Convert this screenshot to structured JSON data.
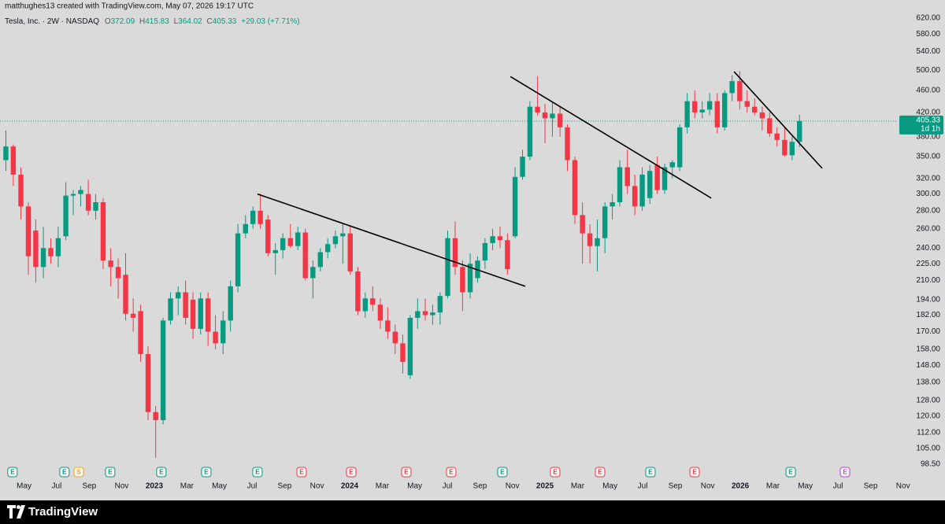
{
  "chart_data": {
    "type": "candlestick",
    "credit": "matthughes13 created with TradingView.com, May 07, 2026 19:17 UTC",
    "title": "Tesla, Inc. · 2W · NASDAQ",
    "ohlc_letters": [
      "O",
      "H",
      "L",
      "C"
    ],
    "change_label": "+29.03 (+7.71%)",
    "countdown": "1d 1h",
    "brand": "TradingView",
    "log_scale": true,
    "grid": false,
    "up_color": "#089981",
    "down_color": "#f23645",
    "xlim": [
      2022.21,
      2026.806
    ],
    "ylim": [
      92.8,
      668
    ],
    "yticks": [
      {
        "value": 98.5,
        "label": "98.50"
      },
      {
        "value": 105,
        "label": "105.00"
      },
      {
        "value": 112,
        "label": "112.00"
      },
      {
        "value": 120,
        "label": "120.00"
      },
      {
        "value": 128,
        "label": "128.00"
      },
      {
        "value": 138,
        "label": "138.00"
      },
      {
        "value": 148,
        "label": "148.00"
      },
      {
        "value": 158,
        "label": "158.00"
      },
      {
        "value": 170,
        "label": "170.00"
      },
      {
        "value": 182,
        "label": "182.00"
      },
      {
        "value": 194,
        "label": "194.00"
      },
      {
        "value": 210,
        "label": "210.00"
      },
      {
        "value": 225,
        "label": "225.00"
      },
      {
        "value": 240,
        "label": "240.00"
      },
      {
        "value": 260,
        "label": "260.00"
      },
      {
        "value": 280,
        "label": "280.00"
      },
      {
        "value": 300,
        "label": "300.00"
      },
      {
        "value": 320,
        "label": "320.00"
      },
      {
        "value": 350,
        "label": "350.00"
      },
      {
        "value": 380,
        "label": "380.00"
      },
      {
        "value": 420,
        "label": "420.00"
      },
      {
        "value": 460,
        "label": "460.00"
      },
      {
        "value": 500,
        "label": "500.00"
      },
      {
        "value": 540,
        "label": "540.00"
      },
      {
        "value": 580,
        "label": "580.00"
      },
      {
        "value": 620,
        "label": "620.00"
      }
    ],
    "xticks": [
      {
        "value": 2022.333,
        "label": "May"
      },
      {
        "value": 2022.5,
        "label": "Jul"
      },
      {
        "value": 2022.667,
        "label": "Sep"
      },
      {
        "value": 2022.833,
        "label": "Nov"
      },
      2023,
      {
        "value": 2023.167,
        "label": "Mar"
      },
      {
        "value": 2023.333,
        "label": "May"
      },
      {
        "value": 2023.5,
        "label": "Jul"
      },
      {
        "value": 2023.667,
        "label": "Sep"
      },
      {
        "value": 2023.833,
        "label": "Nov"
      },
      2024,
      {
        "value": 2024.167,
        "label": "Mar"
      },
      {
        "value": 2024.333,
        "label": "May"
      },
      {
        "value": 2024.5,
        "label": "Jul"
      },
      {
        "value": 2024.667,
        "label": "Sep"
      },
      {
        "value": 2024.833,
        "label": "Nov"
      },
      2025,
      {
        "value": 2025.167,
        "label": "Mar"
      },
      {
        "value": 2025.333,
        "label": "May"
      },
      {
        "value": 2025.5,
        "label": "Jul"
      },
      {
        "value": 2025.667,
        "label": "Sep"
      },
      {
        "value": 2025.833,
        "label": "Nov"
      },
      2026,
      {
        "value": 2026.167,
        "label": "Mar"
      },
      {
        "value": 2026.333,
        "label": "May"
      },
      {
        "value": 2026.5,
        "label": "Jul"
      },
      {
        "value": 2026.667,
        "label": "Sep"
      },
      {
        "value": 2026.833,
        "label": "Nov"
      }
    ],
    "x": [
      2022.24,
      2022.278,
      2022.317,
      2022.355,
      2022.393,
      2022.432,
      2022.47,
      2022.508,
      2022.547,
      2022.585,
      2022.623,
      2022.662,
      2022.7,
      2022.738,
      2022.777,
      2022.815,
      2022.853,
      2022.892,
      2022.93,
      2022.968,
      2023.007,
      2023.045,
      2023.083,
      2023.122,
      2023.16,
      2023.198,
      2023.237,
      2023.275,
      2023.313,
      2023.352,
      2023.39,
      2023.428,
      2023.467,
      2023.505,
      2023.543,
      2023.582,
      2023.62,
      2023.658,
      2023.697,
      2023.735,
      2023.773,
      2023.812,
      2023.85,
      2023.888,
      2023.927,
      2023.965,
      2024.003,
      2024.042,
      2024.08,
      2024.118,
      2024.157,
      2024.195,
      2024.233,
      2024.272,
      2024.31,
      2024.348,
      2024.387,
      2024.425,
      2024.463,
      2024.502,
      2024.54,
      2024.578,
      2024.617,
      2024.655,
      2024.693,
      2024.732,
      2024.77,
      2024.808,
      2024.847,
      2024.885,
      2024.923,
      2024.962,
      2025.0,
      2025.038,
      2025.077,
      2025.115,
      2025.153,
      2025.192,
      2025.23,
      2025.268,
      2025.307,
      2025.345,
      2025.383,
      2025.422,
      2025.46,
      2025.498,
      2025.537,
      2025.575,
      2025.613,
      2025.652,
      2025.69,
      2025.728,
      2025.767,
      2025.805,
      2025.843,
      2025.882,
      2025.92,
      2025.958,
      2025.997,
      2026.035,
      2026.073,
      2026.112,
      2026.15,
      2026.188,
      2026.227,
      2026.265,
      2026.303
    ],
    "ohlc": [
      [
        345,
        390,
        330,
        365
      ],
      [
        365,
        368,
        310,
        325
      ],
      [
        325,
        335,
        270,
        285
      ],
      [
        285,
        290,
        215,
        232
      ],
      [
        258,
        270,
        208,
        222
      ],
      [
        222,
        262,
        212,
        240
      ],
      [
        240,
        250,
        225,
        232
      ],
      [
        232,
        262,
        222,
        250
      ],
      [
        252,
        315,
        248,
        298
      ],
      [
        298,
        305,
        275,
        300
      ],
      [
        300,
        310,
        285,
        305
      ],
      [
        300,
        318,
        275,
        280
      ],
      [
        280,
        300,
        270,
        290
      ],
      [
        290,
        295,
        220,
        228
      ],
      [
        228,
        240,
        205,
        222
      ],
      [
        222,
        230,
        195,
        212
      ],
      [
        215,
        235,
        178,
        183
      ],
      [
        183,
        195,
        170,
        180
      ],
      [
        185,
        190,
        150,
        155
      ],
      [
        155,
        160,
        118,
        122
      ],
      [
        122,
        125,
        101,
        118
      ],
      [
        118,
        180,
        116,
        178
      ],
      [
        178,
        200,
        175,
        195
      ],
      [
        195,
        205,
        182,
        200
      ],
      [
        200,
        210,
        175,
        180
      ],
      [
        194,
        200,
        165,
        172
      ],
      [
        172,
        200,
        168,
        195
      ],
      [
        195,
        200,
        160,
        170
      ],
      [
        170,
        182,
        158,
        162
      ],
      [
        162,
        185,
        155,
        178
      ],
      [
        178,
        210,
        170,
        205
      ],
      [
        205,
        265,
        200,
        255
      ],
      [
        255,
        275,
        250,
        265
      ],
      [
        265,
        285,
        260,
        280
      ],
      [
        280,
        300,
        260,
        265
      ],
      [
        270,
        275,
        232,
        235
      ],
      [
        235,
        245,
        215,
        238
      ],
      [
        238,
        255,
        230,
        250
      ],
      [
        250,
        265,
        240,
        242
      ],
      [
        242,
        262,
        238,
        256
      ],
      [
        256,
        260,
        210,
        212
      ],
      [
        212,
        228,
        195,
        222
      ],
      [
        222,
        240,
        218,
        236
      ],
      [
        236,
        250,
        230,
        244
      ],
      [
        244,
        258,
        240,
        252
      ],
      [
        252,
        265,
        225,
        255
      ],
      [
        255,
        262,
        215,
        218
      ],
      [
        218,
        222,
        182,
        185
      ],
      [
        185,
        200,
        180,
        195
      ],
      [
        195,
        205,
        185,
        190
      ],
      [
        190,
        195,
        172,
        178
      ],
      [
        178,
        188,
        165,
        170
      ],
      [
        170,
        175,
        155,
        162
      ],
      [
        162,
        168,
        143,
        150
      ],
      [
        142,
        182,
        140,
        180
      ],
      [
        180,
        195,
        172,
        185
      ],
      [
        185,
        195,
        178,
        182
      ],
      [
        182,
        190,
        175,
        184
      ],
      [
        184,
        200,
        175,
        197
      ],
      [
        197,
        258,
        195,
        250
      ],
      [
        250,
        268,
        215,
        222
      ],
      [
        222,
        228,
        185,
        200
      ],
      [
        200,
        235,
        195,
        225
      ],
      [
        212,
        232,
        208,
        228
      ],
      [
        228,
        250,
        220,
        245
      ],
      [
        245,
        260,
        238,
        252
      ],
      [
        252,
        262,
        240,
        248
      ],
      [
        248,
        255,
        215,
        220
      ],
      [
        252,
        335,
        250,
        322
      ],
      [
        322,
        360,
        318,
        350
      ],
      [
        350,
        440,
        345,
        430
      ],
      [
        430,
        488,
        415,
        420
      ],
      [
        420,
        435,
        370,
        410
      ],
      [
        410,
        440,
        380,
        418
      ],
      [
        418,
        430,
        380,
        395
      ],
      [
        395,
        400,
        330,
        345
      ],
      [
        345,
        350,
        265,
        275
      ],
      [
        275,
        290,
        225,
        255
      ],
      [
        255,
        265,
        225,
        242
      ],
      [
        242,
        270,
        218,
        250
      ],
      [
        250,
        290,
        235,
        285
      ],
      [
        285,
        300,
        270,
        290
      ],
      [
        290,
        345,
        285,
        335
      ],
      [
        335,
        360,
        300,
        310
      ],
      [
        310,
        325,
        275,
        285
      ],
      [
        285,
        335,
        280,
        325
      ],
      [
        295,
        338,
        288,
        330
      ],
      [
        338,
        350,
        300,
        305
      ],
      [
        305,
        340,
        300,
        335
      ],
      [
        335,
        345,
        320,
        342
      ],
      [
        335,
        400,
        330,
        395
      ],
      [
        395,
        455,
        385,
        440
      ],
      [
        440,
        460,
        410,
        420
      ],
      [
        420,
        440,
        410,
        425
      ],
      [
        425,
        455,
        415,
        440
      ],
      [
        440,
        455,
        385,
        395
      ],
      [
        395,
        460,
        390,
        455
      ],
      [
        455,
        490,
        440,
        478
      ],
      [
        478,
        498,
        425,
        440
      ],
      [
        440,
        460,
        420,
        430
      ],
      [
        430,
        445,
        415,
        420
      ],
      [
        420,
        430,
        390,
        410
      ],
      [
        410,
        420,
        380,
        385
      ],
      [
        385,
        395,
        365,
        375
      ],
      [
        375,
        395,
        350,
        352
      ],
      [
        352,
        380,
        345,
        372
      ],
      [
        372.09,
        415.83,
        364.02,
        405.33
      ]
    ],
    "trendlines": [
      [
        [
          2023.528,
          300
        ],
        [
          2024.899,
          205
        ]
      ],
      [
        [
          2024.823,
          487
        ],
        [
          2025.851,
          295
        ]
      ],
      [
        [
          2025.968,
          497
        ],
        [
          2026.419,
          333.6
        ]
      ]
    ],
    "events": [
      {
        "x": 2022.274,
        "label": "E",
        "color": "#089981"
      },
      {
        "x": 2022.54,
        "label": "E",
        "color": "#089981"
      },
      {
        "x": 2022.613,
        "label": "S",
        "color": "#f7a600"
      },
      {
        "x": 2022.774,
        "label": "E",
        "color": "#089981"
      },
      {
        "x": 2023.036,
        "label": "E",
        "color": "#089981"
      },
      {
        "x": 2023.266,
        "label": "E",
        "color": "#089981"
      },
      {
        "x": 2023.528,
        "label": "E",
        "color": "#089981"
      },
      {
        "x": 2023.754,
        "label": "E",
        "color": "#f23645"
      },
      {
        "x": 2024.008,
        "label": "E",
        "color": "#f23645"
      },
      {
        "x": 2024.29,
        "label": "E",
        "color": "#f23645"
      },
      {
        "x": 2024.52,
        "label": "E",
        "color": "#f23645"
      },
      {
        "x": 2024.782,
        "label": "E",
        "color": "#089981"
      },
      {
        "x": 2025.052,
        "label": "E",
        "color": "#f23645"
      },
      {
        "x": 2025.282,
        "label": "E",
        "color": "#f23645"
      },
      {
        "x": 2025.54,
        "label": "E",
        "color": "#089981"
      },
      {
        "x": 2025.766,
        "label": "E",
        "color": "#f23645"
      },
      {
        "x": 2026.258,
        "label": "E",
        "color": "#089981"
      },
      {
        "x": 2026.536,
        "label": "E",
        "color": "#c040e0"
      }
    ]
  }
}
